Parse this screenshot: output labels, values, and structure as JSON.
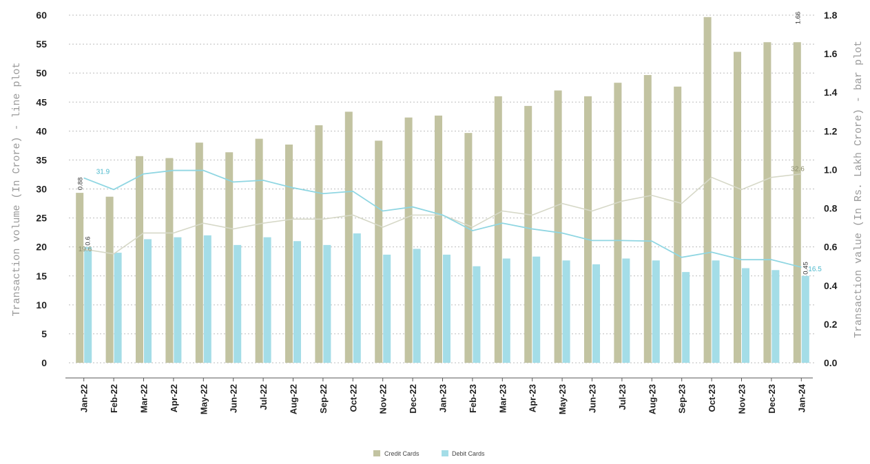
{
  "chart_data": {
    "type": "bar+line",
    "categories": [
      "Jan-22",
      "Feb-22",
      "Mar-22",
      "Apr-22",
      "May-22",
      "Jun-22",
      "Jul-22",
      "Aug-22",
      "Sep-22",
      "Oct-22",
      "Nov-22",
      "Dec-22",
      "Jan-23",
      "Feb-23",
      "Mar-23",
      "Apr-23",
      "May-23",
      "Jun-23",
      "Jul-23",
      "Aug-23",
      "Sep-23",
      "Oct-23",
      "Nov-23",
      "Dec-23",
      "Jan-24"
    ],
    "y_left": {
      "label": "Transaction volume (In Crore) - line plot",
      "range": [
        0,
        60
      ],
      "ticks": [
        "0",
        "5",
        "10",
        "15",
        "20",
        "25",
        "30",
        "35",
        "40",
        "45",
        "50",
        "55",
        "60"
      ]
    },
    "y_right": {
      "label": "Transaction value (In Rs. Lakh Crore) - bar plot",
      "range": [
        0,
        1.8
      ],
      "ticks": [
        "0.0",
        "0.2",
        "0.4",
        "0.6",
        "0.8",
        "1.0",
        "1.2",
        "1.4",
        "1.6",
        "1.8"
      ]
    },
    "grid": true,
    "legend_position": "bottom",
    "bar_series": [
      {
        "name": "Credit Cards",
        "color": "#c2c3a1",
        "values": [
          0.88,
          0.86,
          1.07,
          1.06,
          1.14,
          1.09,
          1.16,
          1.13,
          1.23,
          1.3,
          1.15,
          1.27,
          1.28,
          1.19,
          1.38,
          1.33,
          1.41,
          1.38,
          1.45,
          1.49,
          1.43,
          1.79,
          1.61,
          1.66,
          1.66
        ]
      },
      {
        "name": "Debit Cards",
        "color": "#a4dde7",
        "values": [
          0.6,
          0.57,
          0.64,
          0.65,
          0.66,
          0.61,
          0.65,
          0.63,
          0.61,
          0.67,
          0.56,
          0.59,
          0.56,
          0.5,
          0.54,
          0.55,
          0.53,
          0.51,
          0.54,
          0.53,
          0.47,
          0.53,
          0.49,
          0.48,
          0.45
        ]
      }
    ],
    "line_series": [
      {
        "color": "#d6d8c7",
        "values": [
          19.6,
          18.8,
          22.4,
          22.4,
          24.1,
          23.1,
          24.1,
          24.8,
          24.8,
          25.5,
          23.4,
          25.5,
          25.5,
          23.4,
          26.2,
          25.5,
          27.5,
          26.2,
          27.9,
          28.9,
          27.5,
          32.0,
          29.9,
          32.0,
          32.6
        ]
      },
      {
        "color": "#8fd6e2",
        "values": [
          31.9,
          29.9,
          32.6,
          33.2,
          33.2,
          31.2,
          31.5,
          30.2,
          29.2,
          29.6,
          26.2,
          26.9,
          25.5,
          22.8,
          24.1,
          23.1,
          22.4,
          21.1,
          21.1,
          21.0,
          18.2,
          19.1,
          17.8,
          17.8,
          16.5
        ]
      }
    ],
    "annotations": {
      "credit_bar_first": "0.88",
      "debit_bar_first": "0.6",
      "credit_bar_last": "1.66",
      "debit_bar_last": "0.45",
      "credit_line_first": "19.6",
      "credit_line_last": "32.6",
      "debit_line_first": "31.9",
      "debit_line_last": "16.5"
    }
  }
}
